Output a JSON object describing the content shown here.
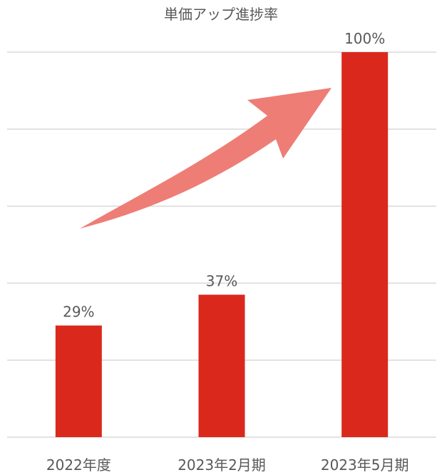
{
  "chart_data": {
    "type": "bar",
    "title": "単価アップ進捗率",
    "categories": [
      "2022年度",
      "2023年2月期",
      "2023年5月期"
    ],
    "values": [
      29,
      37,
      100
    ],
    "data_labels": [
      "29%",
      "37%",
      "100%"
    ],
    "ylim": [
      0,
      100
    ],
    "gridlines": [
      0,
      20,
      40,
      60,
      80,
      100
    ],
    "grid": true,
    "legend": false,
    "xlabel": "",
    "ylabel": "",
    "annotation": "upward-arrow"
  },
  "colors": {
    "bar": "#da291c",
    "arrow": "#ee7d76",
    "grid": "#d9d9d9",
    "text": "#595959"
  }
}
